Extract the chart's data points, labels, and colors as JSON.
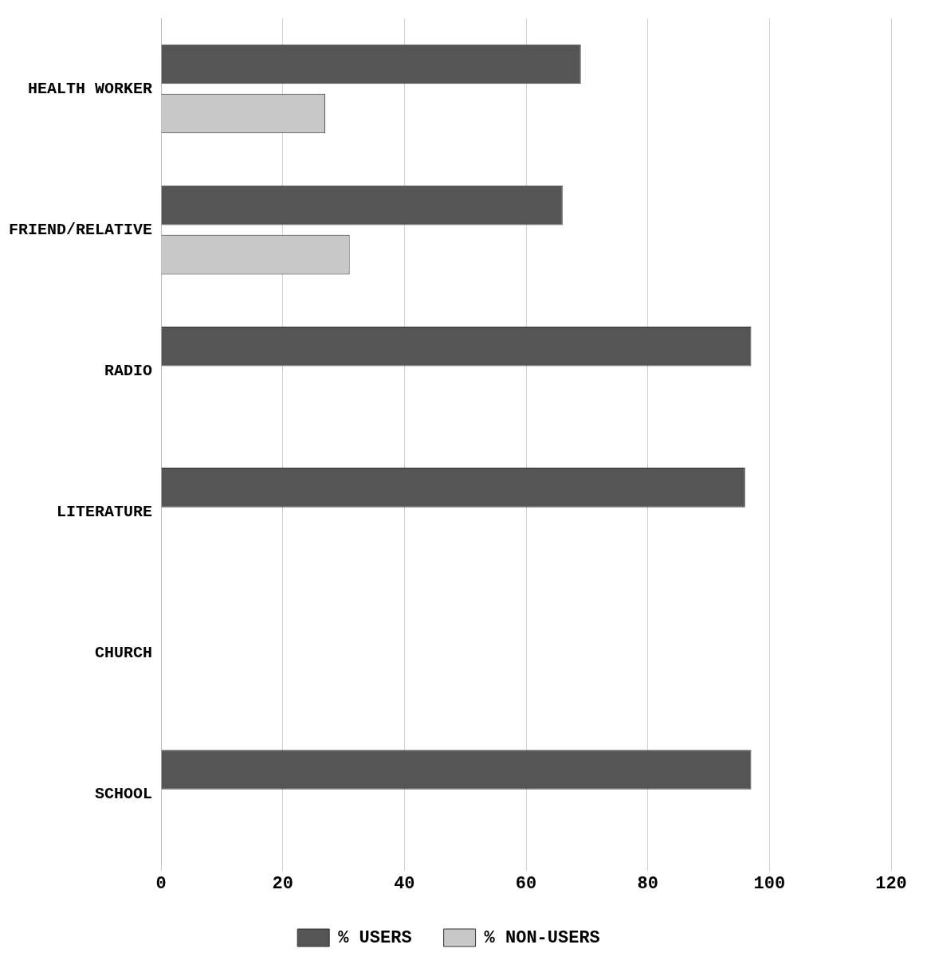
{
  "chart_data": {
    "type": "bar",
    "orientation": "horizontal",
    "categories": [
      "HEALTH WORKER",
      "FRIEND/RELATIVE",
      "RADIO",
      "LITERATURE",
      "CHURCH",
      "SCHOOL"
    ],
    "series": [
      {
        "name": "% USERS",
        "color": "#555555",
        "values": [
          69,
          66,
          97,
          96,
          null,
          97
        ]
      },
      {
        "name": "% NON-USERS",
        "color": "#c8c8c8",
        "values": [
          27,
          31,
          null,
          null,
          null,
          null
        ]
      }
    ],
    "xlim": [
      0,
      120
    ],
    "xticks": [
      0,
      20,
      40,
      60,
      80,
      100,
      120
    ],
    "grid": "x",
    "legend": "bottom"
  }
}
